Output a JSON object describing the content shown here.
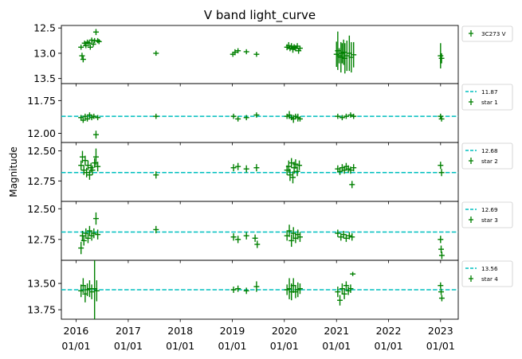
{
  "figure": {
    "title": "V band light_curve",
    "ylabel": "Magnitude"
  },
  "colors": {
    "data": "#008000",
    "reference_line": "#00bfbf"
  },
  "chart_data": {
    "type": "scatter",
    "title": "V band light_curve",
    "ylabel": "Magnitude",
    "x_axis": {
      "type": "date",
      "range": [
        "2015-09-20",
        "2023-05-05"
      ],
      "tick_labels": [
        {
          "year": "2016",
          "day": "01/01"
        },
        {
          "year": "2017",
          "day": "01/01"
        },
        {
          "year": "2018",
          "day": "01/01"
        },
        {
          "year": "2019",
          "day": "01/01"
        },
        {
          "year": "2020",
          "day": "01/01"
        },
        {
          "year": "2021",
          "day": "01/01"
        },
        {
          "year": "2022",
          "day": "01/01"
        },
        {
          "year": "2023",
          "day": "01/01"
        }
      ]
    },
    "panels": [
      {
        "series_name": "3C273 V",
        "reference": null,
        "y_inverted": true,
        "ylim": [
          13.6,
          12.45
        ],
        "y_ticks": [
          "12.5",
          "13.0",
          "13.5"
        ],
        "points": [
          {
            "t": "2016-02-05",
            "y": 12.88,
            "e": 0.05
          },
          {
            "t": "2016-02-12",
            "y": 13.05,
            "e": 0.06
          },
          {
            "t": "2016-02-20",
            "y": 13.12,
            "e": 0.06
          },
          {
            "t": "2016-03-01",
            "y": 12.8,
            "e": 0.05
          },
          {
            "t": "2016-03-10",
            "y": 12.85,
            "e": 0.05
          },
          {
            "t": "2016-03-20",
            "y": 12.78,
            "e": 0.05
          },
          {
            "t": "2016-04-01",
            "y": 12.8,
            "e": 0.05
          },
          {
            "t": "2016-04-10",
            "y": 12.88,
            "e": 0.05
          },
          {
            "t": "2016-04-20",
            "y": 12.74,
            "e": 0.05
          },
          {
            "t": "2016-05-01",
            "y": 12.82,
            "e": 0.05
          },
          {
            "t": "2016-05-10",
            "y": 12.75,
            "e": 0.05
          },
          {
            "t": "2016-05-20",
            "y": 12.58,
            "e": 0.06
          },
          {
            "t": "2016-06-01",
            "y": 12.75,
            "e": 0.05
          },
          {
            "t": "2016-06-10",
            "y": 12.77,
            "e": 0.05
          },
          {
            "t": "2017-07-15",
            "y": 13.0,
            "e": 0.05
          },
          {
            "t": "2019-01-05",
            "y": 13.02,
            "e": 0.05
          },
          {
            "t": "2019-01-20",
            "y": 12.98,
            "e": 0.06
          },
          {
            "t": "2019-02-10",
            "y": 12.95,
            "e": 0.05
          },
          {
            "t": "2019-04-10",
            "y": 12.97,
            "e": 0.05
          },
          {
            "t": "2019-06-20",
            "y": 13.02,
            "e": 0.05
          },
          {
            "t": "2020-01-20",
            "y": 12.88,
            "e": 0.06
          },
          {
            "t": "2020-02-01",
            "y": 12.85,
            "e": 0.07
          },
          {
            "t": "2020-02-10",
            "y": 12.9,
            "e": 0.06
          },
          {
            "t": "2020-02-20",
            "y": 12.86,
            "e": 0.06
          },
          {
            "t": "2020-03-01",
            "y": 12.92,
            "e": 0.07
          },
          {
            "t": "2020-03-10",
            "y": 12.88,
            "e": 0.06
          },
          {
            "t": "2020-03-20",
            "y": 12.9,
            "e": 0.06
          },
          {
            "t": "2020-04-01",
            "y": 12.86,
            "e": 0.06
          },
          {
            "t": "2020-04-10",
            "y": 12.95,
            "e": 0.06
          },
          {
            "t": "2020-04-20",
            "y": 12.9,
            "e": 0.05
          },
          {
            "t": "2021-01-01",
            "y": 13.02,
            "e": 0.25
          },
          {
            "t": "2021-01-10",
            "y": 12.95,
            "e": 0.38
          },
          {
            "t": "2021-01-20",
            "y": 13.05,
            "e": 0.15
          },
          {
            "t": "2021-02-01",
            "y": 13.08,
            "e": 0.3
          },
          {
            "t": "2021-02-10",
            "y": 13.0,
            "e": 0.2
          },
          {
            "t": "2021-02-20",
            "y": 12.98,
            "e": 0.25
          },
          {
            "t": "2021-03-01",
            "y": 13.1,
            "e": 0.3
          },
          {
            "t": "2021-03-15",
            "y": 13.05,
            "e": 0.3
          },
          {
            "t": "2021-04-01",
            "y": 13.0,
            "e": 0.35
          },
          {
            "t": "2021-04-15",
            "y": 13.08,
            "e": 0.3
          },
          {
            "t": "2021-05-01",
            "y": 13.03,
            "e": 0.25
          },
          {
            "t": "2023-01-01",
            "y": 13.05,
            "e": 0.25
          },
          {
            "t": "2023-01-08",
            "y": 13.1,
            "e": 0.1
          }
        ]
      },
      {
        "series_name": "star 1",
        "reference": {
          "label": "11.87",
          "value": 11.87
        },
        "y_inverted": true,
        "ylim": [
          12.07,
          11.62
        ],
        "y_ticks": [
          "11.75",
          "12.00"
        ],
        "points": [
          {
            "t": "2016-02-05",
            "y": 11.88,
            "e": 0.02
          },
          {
            "t": "2016-02-20",
            "y": 11.9,
            "e": 0.02
          },
          {
            "t": "2016-03-05",
            "y": 11.87,
            "e": 0.02
          },
          {
            "t": "2016-03-20",
            "y": 11.89,
            "e": 0.02
          },
          {
            "t": "2016-04-05",
            "y": 11.86,
            "e": 0.02
          },
          {
            "t": "2016-04-20",
            "y": 11.88,
            "e": 0.02
          },
          {
            "t": "2016-05-05",
            "y": 11.87,
            "e": 0.02
          },
          {
            "t": "2016-05-20",
            "y": 12.01,
            "e": 0.03
          },
          {
            "t": "2016-06-01",
            "y": 11.88,
            "e": 0.02
          },
          {
            "t": "2017-07-15",
            "y": 11.87,
            "e": 0.02
          },
          {
            "t": "2019-01-10",
            "y": 11.87,
            "e": 0.02
          },
          {
            "t": "2019-02-10",
            "y": 11.89,
            "e": 0.02
          },
          {
            "t": "2019-04-10",
            "y": 11.88,
            "e": 0.02
          },
          {
            "t": "2019-06-20",
            "y": 11.86,
            "e": 0.02
          },
          {
            "t": "2020-01-20",
            "y": 11.87,
            "e": 0.02
          },
          {
            "t": "2020-02-05",
            "y": 11.86,
            "e": 0.03
          },
          {
            "t": "2020-02-20",
            "y": 11.88,
            "e": 0.02
          },
          {
            "t": "2020-03-05",
            "y": 11.89,
            "e": 0.03
          },
          {
            "t": "2020-03-20",
            "y": 11.87,
            "e": 0.02
          },
          {
            "t": "2020-04-05",
            "y": 11.88,
            "e": 0.03
          },
          {
            "t": "2020-04-20",
            "y": 11.89,
            "e": 0.02
          },
          {
            "t": "2021-01-10",
            "y": 11.87,
            "e": 0.02
          },
          {
            "t": "2021-02-10",
            "y": 11.88,
            "e": 0.02
          },
          {
            "t": "2021-03-10",
            "y": 11.87,
            "e": 0.02
          },
          {
            "t": "2021-04-10",
            "y": 11.86,
            "e": 0.02
          },
          {
            "t": "2021-05-01",
            "y": 11.87,
            "e": 0.02
          },
          {
            "t": "2023-01-01",
            "y": 11.87,
            "e": 0.02
          },
          {
            "t": "2023-01-08",
            "y": 11.89,
            "e": 0.02
          }
        ]
      },
      {
        "series_name": "star 2",
        "reference": {
          "label": "12.68",
          "value": 12.68
        },
        "y_inverted": true,
        "ylim": [
          12.92,
          12.43
        ],
        "y_ticks": [
          "12.50",
          "12.75"
        ],
        "points": [
          {
            "t": "2016-02-05",
            "y": 12.62,
            "e": 0.04
          },
          {
            "t": "2016-02-15",
            "y": 12.55,
            "e": 0.05
          },
          {
            "t": "2016-02-25",
            "y": 12.66,
            "e": 0.04
          },
          {
            "t": "2016-03-05",
            "y": 12.58,
            "e": 0.04
          },
          {
            "t": "2016-03-15",
            "y": 12.68,
            "e": 0.04
          },
          {
            "t": "2016-03-25",
            "y": 12.62,
            "e": 0.04
          },
          {
            "t": "2016-04-05",
            "y": 12.7,
            "e": 0.04
          },
          {
            "t": "2016-04-15",
            "y": 12.64,
            "e": 0.04
          },
          {
            "t": "2016-04-25",
            "y": 12.66,
            "e": 0.04
          },
          {
            "t": "2016-05-10",
            "y": 12.6,
            "e": 0.04
          },
          {
            "t": "2016-05-20",
            "y": 12.55,
            "e": 0.07
          },
          {
            "t": "2016-06-01",
            "y": 12.63,
            "e": 0.04
          },
          {
            "t": "2017-07-15",
            "y": 12.7,
            "e": 0.03
          },
          {
            "t": "2019-01-10",
            "y": 12.64,
            "e": 0.03
          },
          {
            "t": "2019-02-10",
            "y": 12.63,
            "e": 0.03
          },
          {
            "t": "2019-04-10",
            "y": 12.65,
            "e": 0.03
          },
          {
            "t": "2019-06-20",
            "y": 12.64,
            "e": 0.03
          },
          {
            "t": "2020-01-20",
            "y": 12.66,
            "e": 0.04
          },
          {
            "t": "2020-02-01",
            "y": 12.63,
            "e": 0.05
          },
          {
            "t": "2020-02-10",
            "y": 12.7,
            "e": 0.05
          },
          {
            "t": "2020-02-20",
            "y": 12.6,
            "e": 0.04
          },
          {
            "t": "2020-03-01",
            "y": 12.72,
            "e": 0.05
          },
          {
            "t": "2020-03-10",
            "y": 12.64,
            "e": 0.05
          },
          {
            "t": "2020-03-20",
            "y": 12.61,
            "e": 0.04
          },
          {
            "t": "2020-04-01",
            "y": 12.67,
            "e": 0.04
          },
          {
            "t": "2020-04-15",
            "y": 12.62,
            "e": 0.04
          },
          {
            "t": "2021-01-10",
            "y": 12.65,
            "e": 0.03
          },
          {
            "t": "2021-01-25",
            "y": 12.67,
            "e": 0.03
          },
          {
            "t": "2021-02-10",
            "y": 12.64,
            "e": 0.03
          },
          {
            "t": "2021-02-25",
            "y": 12.66,
            "e": 0.03
          },
          {
            "t": "2021-03-10",
            "y": 12.63,
            "e": 0.03
          },
          {
            "t": "2021-03-25",
            "y": 12.65,
            "e": 0.03
          },
          {
            "t": "2021-04-10",
            "y": 12.66,
            "e": 0.03
          },
          {
            "t": "2021-04-20",
            "y": 12.78,
            "e": 0.03
          },
          {
            "t": "2021-05-01",
            "y": 12.64,
            "e": 0.03
          },
          {
            "t": "2023-01-01",
            "y": 12.62,
            "e": 0.03
          },
          {
            "t": "2023-01-08",
            "y": 12.68,
            "e": 0.03
          }
        ]
      },
      {
        "series_name": "star 3",
        "reference": {
          "label": "12.69",
          "value": 12.69
        },
        "y_inverted": true,
        "ylim": [
          12.92,
          12.44
        ],
        "y_ticks": [
          "12.50",
          "12.75"
        ],
        "points": [
          {
            "t": "2016-02-05",
            "y": 12.82,
            "e": 0.05
          },
          {
            "t": "2016-02-15",
            "y": 12.72,
            "e": 0.04
          },
          {
            "t": "2016-02-25",
            "y": 12.76,
            "e": 0.04
          },
          {
            "t": "2016-03-10",
            "y": 12.7,
            "e": 0.04
          },
          {
            "t": "2016-03-25",
            "y": 12.74,
            "e": 0.04
          },
          {
            "t": "2016-04-05",
            "y": 12.68,
            "e": 0.04
          },
          {
            "t": "2016-04-20",
            "y": 12.72,
            "e": 0.04
          },
          {
            "t": "2016-05-05",
            "y": 12.7,
            "e": 0.04
          },
          {
            "t": "2016-05-20",
            "y": 12.58,
            "e": 0.05
          },
          {
            "t": "2016-06-01",
            "y": 12.71,
            "e": 0.04
          },
          {
            "t": "2017-07-15",
            "y": 12.67,
            "e": 0.03
          },
          {
            "t": "2019-01-10",
            "y": 12.73,
            "e": 0.03
          },
          {
            "t": "2019-02-10",
            "y": 12.75,
            "e": 0.03
          },
          {
            "t": "2019-04-10",
            "y": 12.72,
            "e": 0.03
          },
          {
            "t": "2019-06-10",
            "y": 12.74,
            "e": 0.03
          },
          {
            "t": "2019-06-25",
            "y": 12.79,
            "e": 0.03
          },
          {
            "t": "2020-01-20",
            "y": 12.72,
            "e": 0.04
          },
          {
            "t": "2020-02-05",
            "y": 12.68,
            "e": 0.05
          },
          {
            "t": "2020-02-20",
            "y": 12.76,
            "e": 0.05
          },
          {
            "t": "2020-03-05",
            "y": 12.7,
            "e": 0.05
          },
          {
            "t": "2020-03-20",
            "y": 12.74,
            "e": 0.04
          },
          {
            "t": "2020-04-05",
            "y": 12.71,
            "e": 0.04
          },
          {
            "t": "2020-04-20",
            "y": 12.73,
            "e": 0.04
          },
          {
            "t": "2021-01-10",
            "y": 12.7,
            "e": 0.03
          },
          {
            "t": "2021-02-01",
            "y": 12.73,
            "e": 0.03
          },
          {
            "t": "2021-02-20",
            "y": 12.71,
            "e": 0.03
          },
          {
            "t": "2021-03-10",
            "y": 12.74,
            "e": 0.03
          },
          {
            "t": "2021-04-01",
            "y": 12.72,
            "e": 0.03
          },
          {
            "t": "2021-04-20",
            "y": 12.73,
            "e": 0.03
          },
          {
            "t": "2023-01-01",
            "y": 12.75,
            "e": 0.03
          },
          {
            "t": "2023-01-05",
            "y": 12.83,
            "e": 0.03
          },
          {
            "t": "2023-01-10",
            "y": 12.88,
            "e": 0.03
          }
        ]
      },
      {
        "series_name": "star 4",
        "reference": {
          "label": "13.56",
          "value": 13.56
        },
        "y_inverted": true,
        "ylim": [
          13.84,
          13.28
        ],
        "y_ticks": [
          "13.50",
          "13.75"
        ],
        "points": [
          {
            "t": "2016-02-05",
            "y": 13.57,
            "e": 0.06
          },
          {
            "t": "2016-02-20",
            "y": 13.52,
            "e": 0.07
          },
          {
            "t": "2016-03-05",
            "y": 13.6,
            "e": 0.08
          },
          {
            "t": "2016-03-20",
            "y": 13.56,
            "e": 0.06
          },
          {
            "t": "2016-04-05",
            "y": 13.55,
            "e": 0.08
          },
          {
            "t": "2016-04-20",
            "y": 13.58,
            "e": 0.07
          },
          {
            "t": "2016-05-10",
            "y": 13.55,
            "e": 0.3
          },
          {
            "t": "2016-05-25",
            "y": 13.57,
            "e": 0.1
          },
          {
            "t": "2019-01-10",
            "y": 13.56,
            "e": 0.03
          },
          {
            "t": "2019-02-10",
            "y": 13.55,
            "e": 0.03
          },
          {
            "t": "2019-04-10",
            "y": 13.57,
            "e": 0.03
          },
          {
            "t": "2019-06-20",
            "y": 13.53,
            "e": 0.05
          },
          {
            "t": "2020-01-20",
            "y": 13.56,
            "e": 0.05
          },
          {
            "t": "2020-02-05",
            "y": 13.55,
            "e": 0.1
          },
          {
            "t": "2020-02-20",
            "y": 13.58,
            "e": 0.08
          },
          {
            "t": "2020-03-05",
            "y": 13.52,
            "e": 0.07
          },
          {
            "t": "2020-03-20",
            "y": 13.58,
            "e": 0.06
          },
          {
            "t": "2020-04-05",
            "y": 13.56,
            "e": 0.07
          },
          {
            "t": "2020-04-20",
            "y": 13.55,
            "e": 0.05
          },
          {
            "t": "2021-01-10",
            "y": 13.58,
            "e": 0.05
          },
          {
            "t": "2021-01-25",
            "y": 13.66,
            "e": 0.05
          },
          {
            "t": "2021-02-10",
            "y": 13.55,
            "e": 0.05
          },
          {
            "t": "2021-02-25",
            "y": 13.6,
            "e": 0.05
          },
          {
            "t": "2021-03-10",
            "y": 13.52,
            "e": 0.04
          },
          {
            "t": "2021-03-25",
            "y": 13.57,
            "e": 0.04
          },
          {
            "t": "2021-04-10",
            "y": 13.55,
            "e": 0.04
          },
          {
            "t": "2021-04-25",
            "y": 13.41,
            "e": 0.02
          },
          {
            "t": "2023-01-01",
            "y": 13.52,
            "e": 0.03
          },
          {
            "t": "2023-01-05",
            "y": 13.58,
            "e": 0.03
          },
          {
            "t": "2023-01-10",
            "y": 13.64,
            "e": 0.03
          }
        ]
      }
    ]
  }
}
